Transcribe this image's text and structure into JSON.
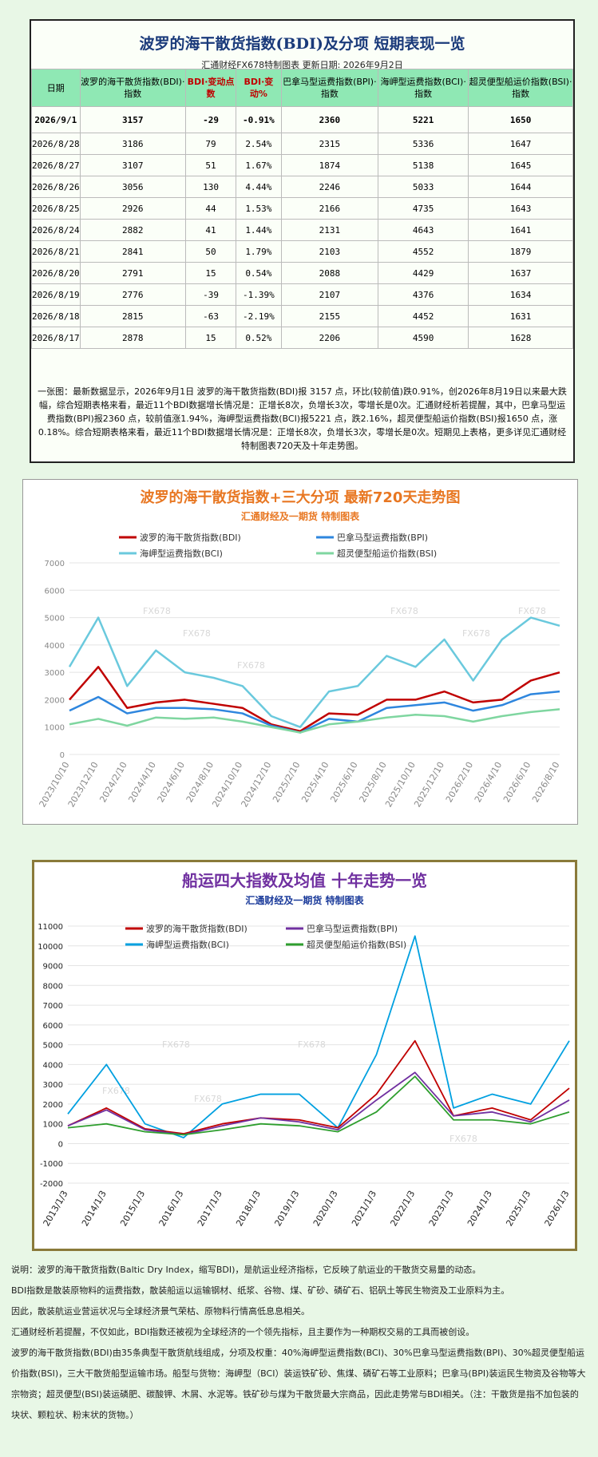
{
  "table": {
    "title": "波罗的海干散货指数(BDI)及分项 短期表现一览",
    "subtitle": "汇通财经FX678特制图表      更新日期: 2026年9月2日",
    "headers": [
      "日期",
      "波罗的海干散货指数(BDI)·指数",
      "BDI·变动点数",
      "BDI·变动%",
      "巴拿马型运费指数(BPI)·指数",
      "海岬型运费指数(BCI)·指数",
      "超灵便型船运价指数(BSI)·指数"
    ],
    "rows": [
      [
        "2026/9/1",
        "3157",
        "-29",
        "-0.91%",
        "2360",
        "5221",
        "1650"
      ],
      [
        "2026/8/28",
        "3186",
        "79",
        "2.54%",
        "2315",
        "5336",
        "1647"
      ],
      [
        "2026/8/27",
        "3107",
        "51",
        "1.67%",
        "1874",
        "5138",
        "1645"
      ],
      [
        "2026/8/26",
        "3056",
        "130",
        "4.44%",
        "2246",
        "5033",
        "1644"
      ],
      [
        "2026/8/25",
        "2926",
        "44",
        "1.53%",
        "2166",
        "4735",
        "1643"
      ],
      [
        "2026/8/24",
        "2882",
        "41",
        "1.44%",
        "2131",
        "4643",
        "1641"
      ],
      [
        "2026/8/21",
        "2841",
        "50",
        "1.79%",
        "2103",
        "4552",
        "1879"
      ],
      [
        "2026/8/20",
        "2791",
        "15",
        "0.54%",
        "2088",
        "4429",
        "1637"
      ],
      [
        "2026/8/19",
        "2776",
        "-39",
        "-1.39%",
        "2107",
        "4376",
        "1634"
      ],
      [
        "2026/8/18",
        "2815",
        "-63",
        "-2.19%",
        "2155",
        "4452",
        "1631"
      ],
      [
        "2026/8/17",
        "2878",
        "15",
        "0.52%",
        "2206",
        "4590",
        "1628"
      ]
    ],
    "note": "一张图：最新数据显示，2026年9月1日 波罗的海干散货指数(BDI)报 3157 点，环比(较前值)跌0.91%，创2026年8月19日以来最大跌幅，综合短期表格来看，最近11个BDI数据增长情况是：正增长8次，负增长3次，零增长是0次。汇通财经析若提醒，其中，巴拿马型运费指数(BPI)报2360 点，较前值涨1.94%，海岬型运费指数(BCI)报5221 点，跌2.16%，超灵便型船运价指数(BSI)报1650 点，涨0.18%。综合短期表格来看，最近11个BDI数据增长情况是：正增长8次，负增长3次，零增长是0次。短期见上表格，更多详见汇通财经特制图表720天及十年走势图。"
  },
  "chart_data": [
    {
      "type": "line",
      "title": "波罗的海干散货指数+三大分项  最新720天走势图",
      "subtitle": "汇通财经及一期货  特制图表",
      "watermark": "FX678",
      "ylim": [
        0,
        7000
      ],
      "yticks": [
        0,
        1000,
        2000,
        3000,
        4000,
        5000,
        6000,
        7000
      ],
      "x": [
        "2023/10/10",
        "2023/12/10",
        "2024/2/10",
        "2024/4/10",
        "2024/6/10",
        "2024/8/10",
        "2024/10/10",
        "2024/12/10",
        "2025/2/10",
        "2025/4/10",
        "2025/6/10",
        "2025/8/10",
        "2025/10/10",
        "2025/12/10",
        "2026/2/10",
        "2026/4/10",
        "2026/6/10",
        "2026/8/10"
      ],
      "series": [
        {
          "name": "波罗的海干散货指数(BDI)",
          "color": "#c00000",
          "values": [
            2000,
            3200,
            1700,
            1900,
            2000,
            1850,
            1700,
            1100,
            850,
            1500,
            1450,
            2000,
            2000,
            2300,
            1900,
            2000,
            2700,
            3000
          ]
        },
        {
          "name": "巴拿马型运费指数(BPI)",
          "color": "#2e86de",
          "values": [
            1600,
            2100,
            1500,
            1700,
            1700,
            1650,
            1500,
            1050,
            800,
            1300,
            1200,
            1700,
            1800,
            1900,
            1600,
            1800,
            2200,
            2300
          ]
        },
        {
          "name": "海岬型运费指数(BCI)",
          "color": "#6ac9dd",
          "values": [
            3200,
            5000,
            2500,
            3800,
            3000,
            2800,
            2500,
            1400,
            1000,
            2300,
            2500,
            3600,
            3200,
            4200,
            2700,
            4200,
            5000,
            4700
          ]
        },
        {
          "name": "超灵便型船运价指数(BSI)",
          "color": "#7fd6a0",
          "values": [
            1100,
            1300,
            1050,
            1350,
            1300,
            1350,
            1200,
            1000,
            800,
            1100,
            1200,
            1350,
            1450,
            1400,
            1200,
            1400,
            1550,
            1650
          ]
        }
      ]
    },
    {
      "type": "line",
      "title": "船运四大指数及均值 十年走势一览",
      "subtitle": "汇通财经及一期货 特制图表",
      "watermark": "FX678",
      "ylim": [
        -2000,
        11000
      ],
      "yticks": [
        -2000,
        -1000,
        0,
        1000,
        2000,
        3000,
        4000,
        5000,
        6000,
        7000,
        8000,
        9000,
        10000,
        11000
      ],
      "x": [
        "2013/1/3",
        "2014/1/3",
        "2015/1/3",
        "2016/1/3",
        "2017/1/3",
        "2018/1/3",
        "2019/1/3",
        "2020/1/3",
        "2021/1/3",
        "2022/1/3",
        "2023/1/3",
        "2024/1/3",
        "2025/1/3",
        "2026/1/3"
      ],
      "series": [
        {
          "name": "波罗的海干散货指数(BDI)",
          "color": "#c00000",
          "values": [
            900,
            1800,
            750,
            500,
            1000,
            1300,
            1200,
            800,
            2500,
            5200,
            1400,
            1800,
            1200,
            2800
          ]
        },
        {
          "name": "巴拿马型运费指数(BPI)",
          "color": "#7030a0",
          "values": [
            900,
            1700,
            700,
            450,
            900,
            1300,
            1100,
            700,
            2200,
            3600,
            1400,
            1600,
            1100,
            2200
          ]
        },
        {
          "name": "海岬型运费指数(BCI)",
          "color": "#00a0e0",
          "values": [
            1500,
            4000,
            1000,
            300,
            2000,
            2500,
            2500,
            800,
            4500,
            10500,
            1800,
            2500,
            2000,
            5200
          ]
        },
        {
          "name": "超灵便型船运价指数(BSI)",
          "color": "#2e9e2e",
          "values": [
            800,
            1000,
            600,
            450,
            700,
            1000,
            900,
            600,
            1600,
            3400,
            1200,
            1200,
            1000,
            1600
          ]
        }
      ]
    }
  ],
  "notes": [
    "说明：波罗的海干散货指数(Baltic Dry Index，缩写BDI)，是航运业经济指标，它反映了航运业的干散货交易量的动态。",
    "BDI指数是散装原物料的运费指数，散装船运以运输钢材、纸浆、谷物、煤、矿砂、磷矿石、铝矾土等民生物资及工业原料为主。",
    "因此，散装航运业营运状况与全球经济景气荣枯、原物料行情高低息息相关。",
    "汇通财经析若提醒，不仅如此，BDI指数还被视为全球经济的一个领先指标，且主要作为一种期权交易的工具而被创设。",
    "波罗的海干散货指数(BDI)由35条典型干散货航线组成，分项及权重：40%海岬型运费指数(BCI)、30%巴拿马型运费指数(BPI)、30%超灵便型船运价指数(BSI)，三大干散货船型运输市场。船型与货物：海岬型（BCI）装运铁矿砂、焦煤、磷矿石等工业原料；巴拿马(BPI)装运民生物资及谷物等大宗物资；超灵便型(BSI)装运磷肥、碳酸钾、木屑、水泥等。铁矿砂与煤为干散货最大宗商品，因此走势常与BDI相关。（注：干散货是指不加包装的块状、颗粒状、粉末状的货物。）"
  ]
}
